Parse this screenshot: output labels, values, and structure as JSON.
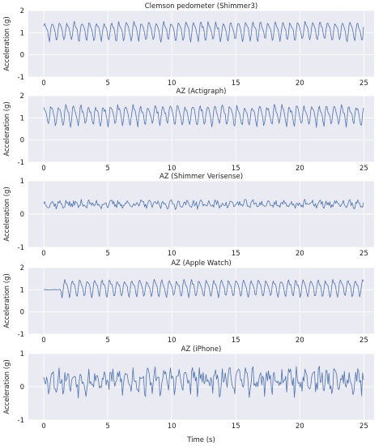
{
  "figure": {
    "xlabel": "Time (s)",
    "line_color": "#4c72b0",
    "plot_bg": "#eaeaf2",
    "grid_color": "#ffffff"
  },
  "chart_data": [
    {
      "type": "line",
      "title": "Clemson pedometer (Shimmer3)",
      "ylabel": "Acceleration (g)",
      "xlim": [
        -1.2,
        25.8
      ],
      "ylim": [
        -1,
        2
      ],
      "xticks": [
        0,
        5,
        10,
        15,
        20,
        25
      ],
      "yticks": [
        -1,
        0,
        1,
        2
      ],
      "series": [
        {
          "x_range": [
            0,
            25
          ],
          "mean": 1.1,
          "amp": 0.36,
          "freq": 1.72,
          "noise": 0.07,
          "phase": 0.3,
          "seed": 11
        }
      ]
    },
    {
      "type": "line",
      "title": "AZ (Actigraph)",
      "ylabel": "Acceleration (g)",
      "xlim": [
        -1.2,
        25.8
      ],
      "ylim": [
        -1,
        2
      ],
      "xticks": [
        0,
        5,
        10,
        15,
        20,
        25
      ],
      "yticks": [
        -1,
        0,
        1,
        2
      ],
      "series": [
        {
          "x_range": [
            0,
            25
          ],
          "mean": 1.15,
          "amp": 0.38,
          "freq": 1.72,
          "noise": 0.1,
          "phase": 1.1,
          "seed": 23
        }
      ]
    },
    {
      "type": "line",
      "title": "AZ (Shimmer Verisense)",
      "ylabel": "Acceleration (g)",
      "xlim": [
        -1.2,
        25.8
      ],
      "ylim": [
        -1,
        1
      ],
      "xticks": [
        0,
        5,
        10,
        15,
        20,
        25
      ],
      "yticks": [
        -1,
        0,
        1
      ],
      "series": [
        {
          "x_range": [
            0,
            25
          ],
          "mean": 0.3,
          "amp": 0.06,
          "freq": 1.72,
          "noise": 0.09,
          "phase": 0.6,
          "seed": 37
        }
      ]
    },
    {
      "type": "line",
      "title": "AZ (Apple Watch)",
      "ylabel": "Acceleration (g)",
      "xlim": [
        -1.2,
        25.8
      ],
      "ylim": [
        -1,
        2
      ],
      "xticks": [
        0,
        5,
        10,
        15,
        20,
        25
      ],
      "yticks": [
        -1,
        0,
        1,
        2
      ],
      "series": [
        {
          "x_range": [
            0,
            25
          ],
          "mean": 1.1,
          "amp": 0.32,
          "freq": 1.72,
          "noise": 0.06,
          "phase": 2.0,
          "seed": 41,
          "settle_until": 1.3
        }
      ]
    },
    {
      "type": "line",
      "title": "AZ (iPhone)",
      "ylabel": "Acceleration (g)",
      "xlim": [
        -1.2,
        25.8
      ],
      "ylim": [
        -1,
        1
      ],
      "xticks": [
        0,
        5,
        10,
        15,
        20,
        25
      ],
      "yticks": [
        -1,
        0,
        1
      ],
      "series": [
        {
          "x_range": [
            0,
            25
          ],
          "mean": 0.2,
          "amp": 0.22,
          "freq": 1.72,
          "noise": 0.26,
          "phase": 0.9,
          "seed": 53
        }
      ]
    }
  ]
}
